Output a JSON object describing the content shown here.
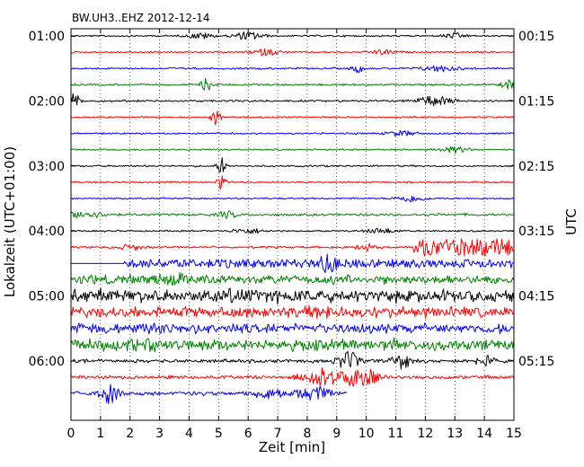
{
  "chart_data": {
    "type": "line",
    "title": "BW.UH3..EHZ 2012-12-14",
    "xlabel": "Zeit  [min]",
    "ylabel_left": "Lokalzeit (UTC+01:00)",
    "ylabel_right": "UTC",
    "xlim": [
      0,
      15
    ],
    "x_ticks": [
      "0",
      "1",
      "2",
      "3",
      "4",
      "5",
      "6",
      "7",
      "8",
      "9",
      "10",
      "11",
      "12",
      "13",
      "14",
      "15"
    ],
    "left_ticks": [
      "01:00",
      "02:00",
      "03:00",
      "04:00",
      "05:00",
      "06:00"
    ],
    "right_ticks": [
      "00:15",
      "01:15",
      "02:15",
      "03:15",
      "04:15",
      "05:15"
    ],
    "minutes_per_trace": 15,
    "grid": "x-dotted",
    "trace_colors": [
      "#000000",
      "#ff0000",
      "#0000ff",
      "#008000"
    ],
    "traces": [
      {
        "amp": 0.12,
        "events": [
          {
            "t": 4.4,
            "a": 0.35,
            "w": 0.4
          },
          {
            "t": 6.0,
            "a": 0.45,
            "w": 0.5
          },
          {
            "t": 13.0,
            "a": 0.3,
            "w": 0.4
          }
        ]
      },
      {
        "amp": 0.12,
        "events": [
          {
            "t": 6.6,
            "a": 0.35,
            "w": 0.5
          },
          {
            "t": 10.6,
            "a": 0.3,
            "w": 0.4
          }
        ]
      },
      {
        "amp": 0.13,
        "events": [
          {
            "t": 9.7,
            "a": 0.5,
            "w": 0.2
          },
          {
            "t": 12.5,
            "a": 0.35,
            "w": 0.6
          }
        ]
      },
      {
        "amp": 0.14,
        "events": [
          {
            "t": 4.6,
            "a": 0.7,
            "w": 0.2
          },
          {
            "t": 14.9,
            "a": 0.6,
            "w": 0.3
          }
        ]
      },
      {
        "amp": 0.15,
        "events": [
          {
            "t": 0.1,
            "a": 0.9,
            "w": 0.2
          },
          {
            "t": 12.3,
            "a": 0.55,
            "w": 0.6
          }
        ]
      },
      {
        "amp": 0.12,
        "events": [
          {
            "t": 4.9,
            "a": 0.9,
            "w": 0.15
          }
        ]
      },
      {
        "amp": 0.12,
        "events": [
          {
            "t": 11.2,
            "a": 0.3,
            "w": 0.5
          }
        ]
      },
      {
        "amp": 0.12,
        "events": [
          {
            "t": 13.0,
            "a": 0.35,
            "w": 0.5
          }
        ]
      },
      {
        "amp": 0.13,
        "events": [
          {
            "t": 5.1,
            "a": 1.0,
            "w": 0.15
          }
        ]
      },
      {
        "amp": 0.12,
        "events": [
          {
            "t": 5.1,
            "a": 1.3,
            "w": 0.12
          }
        ]
      },
      {
        "amp": 0.12,
        "events": [
          {
            "t": 11.5,
            "a": 0.4,
            "w": 0.5
          }
        ]
      },
      {
        "amp": 0.18,
        "events": [
          {
            "t": 0.5,
            "a": 0.4,
            "w": 0.6
          },
          {
            "t": 5.3,
            "a": 0.4,
            "w": 0.3
          }
        ]
      },
      {
        "amp": 0.12,
        "events": [
          {
            "t": 6.0,
            "a": 0.3,
            "w": 0.5
          },
          {
            "t": 10.5,
            "a": 0.3,
            "w": 0.5
          }
        ]
      },
      {
        "amp": 0.15,
        "events": [
          {
            "t": 2.0,
            "a": 0.3,
            "w": 0.4
          },
          {
            "t": 10.0,
            "a": 0.4,
            "w": 0.3
          }
        ],
        "block": {
          "t0": 11.6,
          "t1": 15.0,
          "a": 1.05
        }
      },
      {
        "amp": 0.0,
        "gap": [
          0.0,
          1.75
        ],
        "block": {
          "t0": 1.75,
          "t1": 15.0,
          "a": 0.55
        },
        "events": [
          {
            "t": 8.7,
            "a": 0.7,
            "w": 0.3
          }
        ]
      },
      {
        "amp": 0.65,
        "events": [
          {
            "t": 3.5,
            "a": 0.3,
            "w": 0.6
          }
        ]
      },
      {
        "amp": 0.9,
        "events": [
          {
            "t": 6.0,
            "a": 0.3,
            "w": 0.8
          }
        ]
      },
      {
        "amp": 0.75,
        "events": [
          {
            "t": 8.2,
            "a": 0.3,
            "w": 0.8
          }
        ]
      },
      {
        "amp": 0.7,
        "events": [
          {
            "t": 3.0,
            "a": 0.2,
            "w": 0.8
          }
        ]
      },
      {
        "amp": 0.8,
        "events": [
          {
            "t": 2.5,
            "a": 0.3,
            "w": 0.8
          }
        ]
      },
      {
        "amp": 0.25,
        "events": [
          {
            "t": 9.4,
            "a": 1.0,
            "w": 0.4
          },
          {
            "t": 11.2,
            "a": 0.9,
            "w": 0.3
          },
          {
            "t": 14.0,
            "a": 0.6,
            "w": 0.3
          }
        ]
      },
      {
        "amp": 0.25,
        "events": [
          {
            "t": 8.5,
            "a": 1.1,
            "w": 0.6
          },
          {
            "t": 9.8,
            "a": 1.3,
            "w": 0.5
          }
        ]
      },
      {
        "amp": 0.3,
        "end": 9.35,
        "events": [
          {
            "t": 1.3,
            "a": 1.1,
            "w": 0.3
          },
          {
            "t": 6.7,
            "a": 0.5,
            "w": 0.5
          },
          {
            "t": 8.2,
            "a": 0.7,
            "w": 0.6
          }
        ]
      }
    ]
  }
}
